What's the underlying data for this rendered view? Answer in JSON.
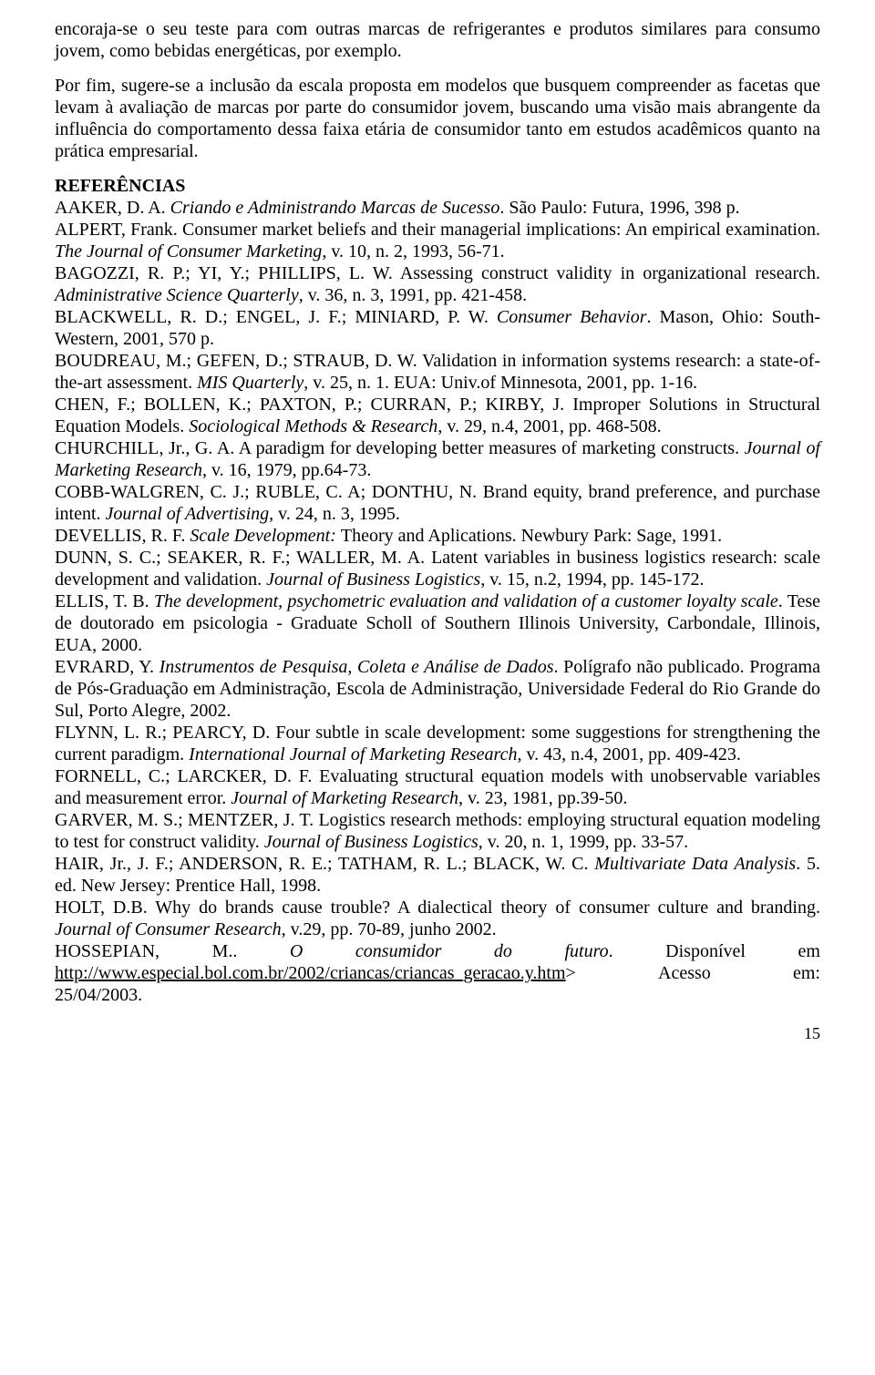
{
  "intro": {
    "p1": "encoraja-se o seu teste para com outras marcas de refrigerantes e produtos similares para consumo jovem, como bebidas energéticas, por exemplo.",
    "p2": "Por fim, sugere-se a inclusão da escala proposta em modelos que busquem compreender as facetas que levam à avaliação de marcas por parte do consumidor jovem, buscando uma visão mais abrangente da influência do comportamento dessa faixa etária de consumidor tanto em estudos acadêmicos quanto na prática empresarial."
  },
  "refs_title": "REFERÊNCIAS",
  "refs": {
    "aaker": {
      "pre": "AAKER, D. A. ",
      "italic": "Criando e Administrando Marcas de Sucesso",
      "post": ". São Paulo: Futura, 1996, 398 p."
    },
    "alpert": {
      "pre": "ALPERT, Frank. Consumer market beliefs and their managerial implications: An empirical examination. ",
      "italic": "The Journal of Consumer Marketing",
      "post": ", v. 10, n. 2, 1993, 56-71."
    },
    "bagozzi": {
      "pre": "BAGOZZI, R. P.; YI, Y.; PHILLIPS, L. W. Assessing construct validity in organizational research. ",
      "italic": "Administrative Science Quarterly",
      "post": ", v. 36, n. 3, 1991, pp. 421-458."
    },
    "blackwell": {
      "pre": "BLACKWELL, R. D.; ENGEL, J. F.; MINIARD, P. W. ",
      "italic": "Consumer Behavior",
      "post": ". Mason, Ohio: South-Western, 2001, 570 p."
    },
    "boudreau": {
      "pre": "BOUDREAU, M.; GEFEN, D.; STRAUB, D. W. Validation in information systems research: a state-of-the-art assessment. ",
      "italic": "MIS Quarterly",
      "post": ", v. 25, n. 1. EUA: Univ.of Minnesota, 2001, pp. 1-16."
    },
    "chen": {
      "pre": "CHEN, F.; BOLLEN, K.; PAXTON, P.; CURRAN, P.; KIRBY, J. Improper Solutions in Structural Equation Models. ",
      "italic": "Sociological Methods & Research",
      "post": ", v. 29, n.4, 2001, pp. 468-508."
    },
    "churchill": {
      "pre": "CHURCHILL, Jr., G. A. A paradigm for developing better measures of marketing constructs. ",
      "italic": "Journal of Marketing Research",
      "post": ", v. 16, 1979, pp.64-73."
    },
    "cobb": {
      "pre": "COBB-WALGREN, C. J.; RUBLE, C. A; DONTHU, N. Brand equity, brand preference, and purchase intent. ",
      "italic": "Journal of Advertising",
      "post": ", v. 24, n. 3, 1995."
    },
    "devellis": {
      "pre": "DEVELLIS, R. F. ",
      "italic": "Scale Development: ",
      "post": "Theory and Aplications. Newbury Park: Sage, 1991."
    },
    "dunn": {
      "pre": "DUNN, S. C.; SEAKER, R. F.; WALLER, M. A. Latent variables in business logistics research: scale development and validation. ",
      "italic": "Journal of Business Logistics",
      "post": ", v. 15, n.2, 1994, pp. 145-172."
    },
    "ellis": {
      "pre": "ELLIS, T. B. ",
      "italic": "The development, psychometric evaluation and validation of a customer loyalty scale",
      "post": ". Tese de doutorado em psicologia - Graduate Scholl of Southern Illinois University, Carbondale, Illinois, EUA, 2000."
    },
    "evrard": {
      "pre": "EVRARD, Y. ",
      "italic": "Instrumentos de Pesquisa, Coleta e Análise de Dados",
      "post": ". Polígrafo não publicado. Programa de Pós-Graduação em Administração, Escola de Administração, Universidade Federal do Rio Grande do Sul, Porto Alegre, 2002."
    },
    "flynn": {
      "pre": "FLYNN, L. R.; PEARCY, D. Four subtle in scale development: some suggestions for strengthening the current paradigm. ",
      "italic": "International Journal of Marketing Research",
      "post": ", v.  43, n.4, 2001, pp. 409-423."
    },
    "fornell": {
      "pre": "FORNELL, C.; LARCKER, D. F. Evaluating structural equation models with unobservable variables and measurement error. ",
      "italic": "Journal of Marketing Research",
      "post": ", v.  23, 1981, pp.39-50."
    },
    "garver": {
      "pre": "GARVER, M. S.; MENTZER, J. T. Logistics research methods: employing structural equation modeling to test for construct validity. ",
      "italic": "Journal of Business Logistics",
      "post": ", v. 20, n. 1, 1999, pp. 33-57."
    },
    "hair": {
      "pre": "HAIR, Jr., J. F.; ANDERSON, R. E.; TATHAM, R. L.; BLACK, W. C. ",
      "italic": "Multivariate Data Analysis",
      "post": ". 5. ed. New Jersey: Prentice Hall, 1998."
    },
    "holt": {
      "pre": "HOLT, D.B. Why do brands cause trouble? A dialectical theory of consumer culture and branding. ",
      "italic": "Journal of Consumer Research",
      "post": ", v.29, pp. 70-89, junho 2002."
    },
    "hossepian": {
      "w1": "HOSSEPIAN,",
      "w2": "M..",
      "w3_italic": "O",
      "w4_italic": "consumidor",
      "w5_italic": "do",
      "w6_italic": "futuro",
      "w7": ".",
      "w8": "Disponível",
      "w9": "em",
      "url": "http://www.especial.bol.com.br/2002/criancas/criancas_geracao.y.htm",
      "w10": ">",
      "w11": "Acesso",
      "w12": "em:",
      "date": "25/04/2003."
    }
  },
  "page_number": "15"
}
